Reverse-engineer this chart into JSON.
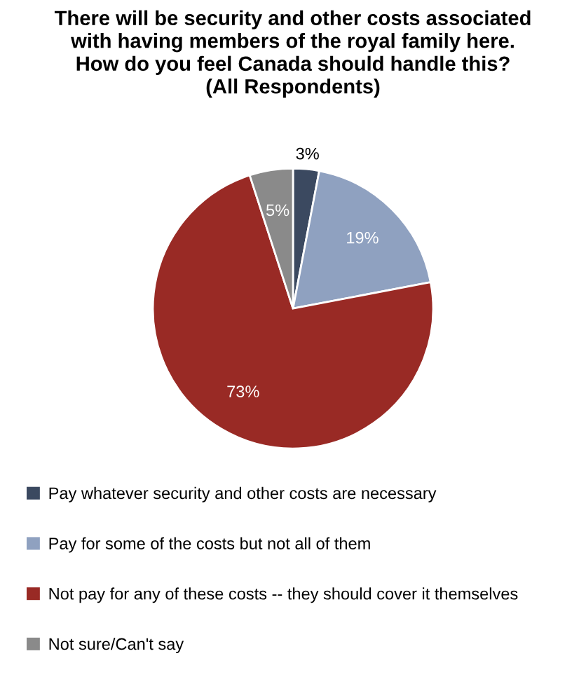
{
  "chart_data": {
    "type": "pie",
    "title": "There will be security and other costs associated\nwith having members of the royal family here.\nHow do you feel Canada should handle this?\n(All Respondents)",
    "categories": [
      "Pay whatever security and other costs are necessary",
      "Pay for some of the costs but not all of them",
      "Not pay for any of these costs -- they should cover it themselves",
      "Not sure/Can't say"
    ],
    "values": [
      3,
      19,
      73,
      5
    ],
    "colors": [
      "#3b4960",
      "#8fa1c0",
      "#992a25",
      "#8a8a8a"
    ],
    "value_labels": [
      "3%",
      "19%",
      "73%",
      "5%"
    ],
    "legend": "bottom"
  }
}
